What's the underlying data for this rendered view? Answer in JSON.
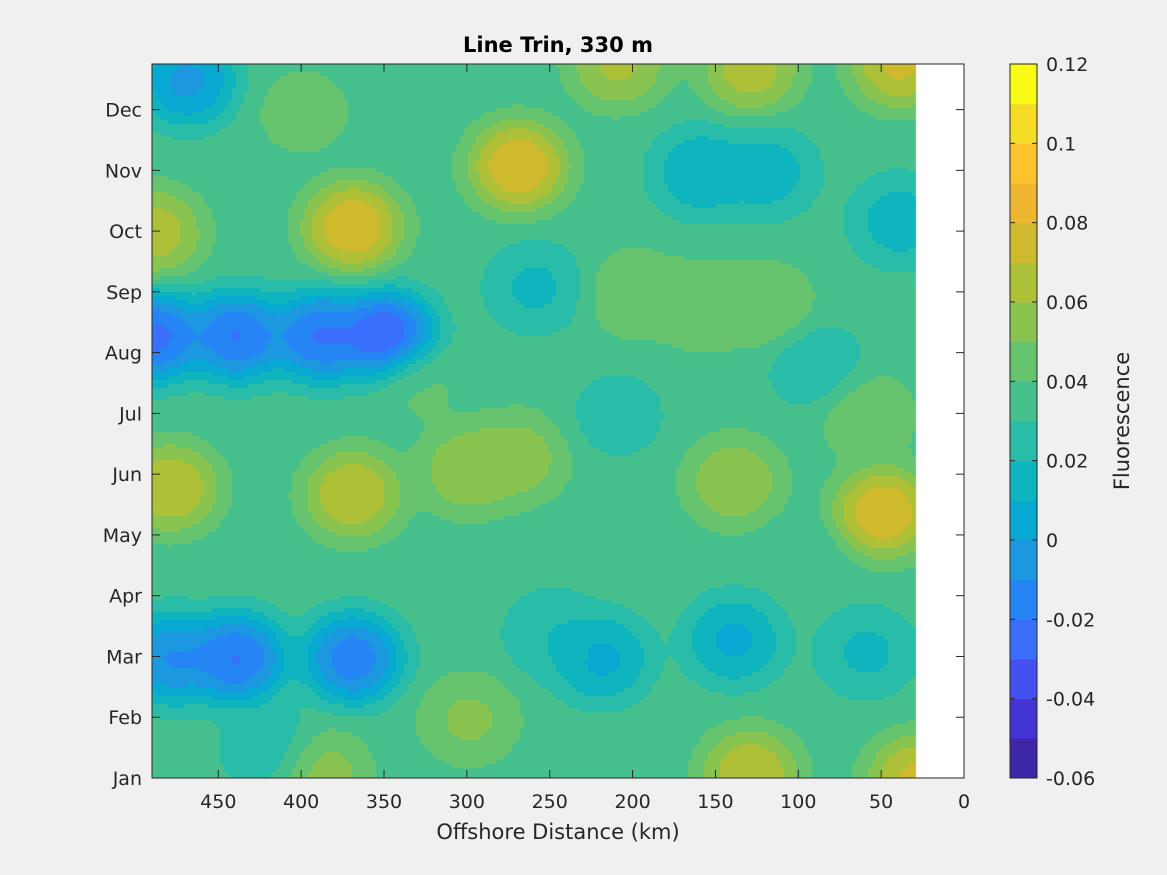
{
  "chart_data": {
    "type": "heatmap",
    "title": "Line Trin, 330 m",
    "xlabel": "Offshore Distance (km)",
    "ylabel": "",
    "x_reversed": true,
    "xlim": [
      0,
      490
    ],
    "x_ticks": [
      450,
      400,
      350,
      300,
      250,
      200,
      150,
      100,
      50,
      0
    ],
    "x_data_range": [
      30,
      490
    ],
    "y_ticks": [
      "Jan",
      "Feb",
      "Mar",
      "Apr",
      "May",
      "Jun",
      "Jul",
      "Aug",
      "Sep",
      "Oct",
      "Nov",
      "Dec"
    ],
    "colorbar": {
      "label": "Fluorescence",
      "ticks": [
        "0.12",
        "0.1",
        "0.08",
        "0.06",
        "0.04",
        "0.02",
        "0",
        "-0.02",
        "-0.04",
        "-0.06"
      ],
      "range": [
        -0.06,
        0.12
      ],
      "levels": 18,
      "colormap": [
        "#3e26a8",
        "#4433d5",
        "#4450ef",
        "#3a6ffb",
        "#2685f4",
        "#1c98e0",
        "#07a9d3",
        "#0eb5be",
        "#29bca9",
        "#46c18e",
        "#66c46f",
        "#89c451",
        "#aec037",
        "#cfba2e",
        "#efb632",
        "#fcc42c",
        "#f5dc25",
        "#f9fb14"
      ]
    },
    "features": [
      {
        "x": 350,
        "y": 7.3,
        "value": -0.06
      },
      {
        "x": 390,
        "y": 7.3,
        "value": -0.045
      },
      {
        "x": 440,
        "y": 7.3,
        "value": -0.045
      },
      {
        "x": 490,
        "y": 7.3,
        "value": -0.05
      },
      {
        "x": 440,
        "y": 2.0,
        "value": -0.045
      },
      {
        "x": 370,
        "y": 2.0,
        "value": -0.04
      },
      {
        "x": 480,
        "y": 2.0,
        "value": -0.03
      },
      {
        "x": 470,
        "y": 11.5,
        "value": -0.02
      },
      {
        "x": 370,
        "y": 9.1,
        "value": 0.1
      },
      {
        "x": 270,
        "y": 10.1,
        "value": 0.1
      },
      {
        "x": 490,
        "y": 9.0,
        "value": 0.08
      },
      {
        "x": 480,
        "y": 4.8,
        "value": 0.085
      },
      {
        "x": 370,
        "y": 4.7,
        "value": 0.085
      },
      {
        "x": 50,
        "y": 4.4,
        "value": 0.1
      },
      {
        "x": 40,
        "y": 11.8,
        "value": 0.09
      },
      {
        "x": 30,
        "y": 0.0,
        "value": 0.09
      },
      {
        "x": 130,
        "y": 0.1,
        "value": 0.085
      },
      {
        "x": 60,
        "y": 6.0,
        "value": 0.055
      },
      {
        "x": 210,
        "y": 6.0,
        "value": 0.02
      },
      {
        "x": 160,
        "y": 10.0,
        "value": 0.0
      },
      {
        "x": 120,
        "y": 10.0,
        "value": 0.005
      },
      {
        "x": 40,
        "y": 9.2,
        "value": 0.005
      },
      {
        "x": 260,
        "y": 8.1,
        "value": 0.01
      },
      {
        "x": 140,
        "y": 2.3,
        "value": -0.005
      },
      {
        "x": 220,
        "y": 2.0,
        "value": -0.005
      },
      {
        "x": 60,
        "y": 2.1,
        "value": 0.01
      },
      {
        "x": 300,
        "y": 5.1,
        "value": 0.07
      },
      {
        "x": 270,
        "y": 5.3,
        "value": 0.065
      },
      {
        "x": 140,
        "y": 4.9,
        "value": 0.07
      },
      {
        "x": 200,
        "y": 8.0,
        "value": 0.055
      },
      {
        "x": 160,
        "y": 7.8,
        "value": 0.055
      },
      {
        "x": 120,
        "y": 7.8,
        "value": 0.055
      },
      {
        "x": 130,
        "y": 11.7,
        "value": 0.08
      },
      {
        "x": 210,
        "y": 11.8,
        "value": 0.075
      },
      {
        "x": 400,
        "y": 11.0,
        "value": 0.05
      },
      {
        "x": 420,
        "y": 0.5,
        "value": 0.015
      },
      {
        "x": 390,
        "y": 0.1,
        "value": 0.065
      },
      {
        "x": 300,
        "y": 1.0,
        "value": 0.06
      },
      {
        "x": 90,
        "y": 6.8,
        "value": 0.015
      },
      {
        "x": 100,
        "y": 3.5,
        "value": 0.03
      },
      {
        "x": 250,
        "y": 2.4,
        "value": 0.015
      },
      {
        "x": 330,
        "y": 6.5,
        "value": 0.045
      }
    ]
  }
}
